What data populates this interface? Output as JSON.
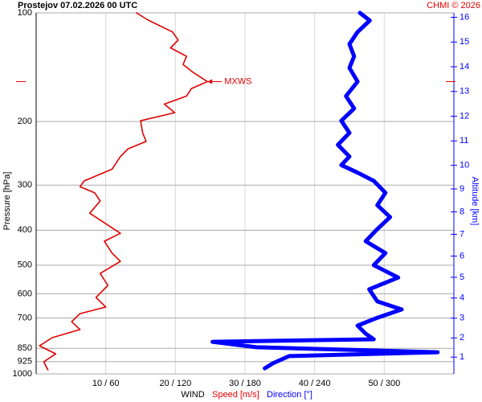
{
  "chart_data": {
    "type": "line",
    "title": "Prostejov    07.02.2026 00 UTC",
    "credit": "CHMI © 2026",
    "ylabel": "Pressure [hPa]",
    "y2label": "Altitude [km]",
    "xlabel": "WIND",
    "log": true,
    "grid": true,
    "ylim": [
      1000,
      100
    ],
    "yticks": [
      100,
      200,
      300,
      400,
      500,
      600,
      700,
      850,
      925,
      1000
    ],
    "y2ticks": [
      1,
      2,
      3,
      4,
      5,
      6,
      7,
      8,
      9,
      10,
      11,
      12,
      13,
      14,
      15,
      16
    ],
    "xlim": [
      0,
      60
    ],
    "x2lim": [
      0,
      360
    ],
    "xticks": [
      {
        "value": 10,
        "label": "10 / 60"
      },
      {
        "value": 20,
        "label": "20 / 120"
      },
      {
        "value": 30,
        "label": "30 / 180"
      },
      {
        "value": 40,
        "label": "40 / 240"
      },
      {
        "value": 50,
        "label": "50 / 300"
      }
    ],
    "annotation": {
      "label": "MXWS",
      "pressure": 155,
      "value": 24.6,
      "color": "#e00000"
    },
    "series": [
      {
        "name": "Speed [m/s]",
        "color": "#e00000",
        "axis": "x",
        "pressure": [
          100,
          104.7,
          113,
          119,
          125,
          132,
          139,
          146,
          155,
          162,
          170,
          179,
          189,
          199,
          215,
          227,
          238,
          250,
          271,
          292,
          303,
          315,
          332,
          359,
          387,
          408,
          429,
          463,
          488,
          527,
          569,
          614,
          653,
          681,
          717,
          754,
          794,
          836,
          880,
          926,
          975
        ],
        "values": [
          14.4,
          16.1,
          19.6,
          20.4,
          19.3,
          21.6,
          21.1,
          22.5,
          24.6,
          22.3,
          21.6,
          18.4,
          19.9,
          15.0,
          15.3,
          15.8,
          13.2,
          12.1,
          10.9,
          6.9,
          6.3,
          8.4,
          9.2,
          7.7,
          10.3,
          12.1,
          9.8,
          10.9,
          12.1,
          9.2,
          10.3,
          8.6,
          10.0,
          6.3,
          5.1,
          6.3,
          2.3,
          0.5,
          2.8,
          1.1,
          1.7
        ]
      },
      {
        "name": "Direction [°]",
        "color": "#0000ff",
        "axis": "x2",
        "pressure": [
          100,
          105,
          113,
          122,
          132,
          142,
          155,
          170,
          184,
          199,
          215,
          232,
          250,
          264,
          277,
          292,
          315,
          341,
          368,
          397,
          429,
          463,
          500,
          541,
          583,
          630,
          663,
          699,
          735,
          774,
          802,
          815,
          844,
          871,
          893,
          935,
          965
        ],
        "values": [
          279,
          287.5,
          277,
          270,
          274,
          270,
          277,
          267,
          274,
          263,
          270,
          260,
          270,
          263,
          277,
          291,
          301,
          294,
          305,
          294,
          284,
          301,
          291,
          312,
          287,
          294,
          315,
          294,
          277,
          284,
          291,
          152,
          190,
          346,
          218,
          204,
          197
        ]
      }
    ]
  }
}
